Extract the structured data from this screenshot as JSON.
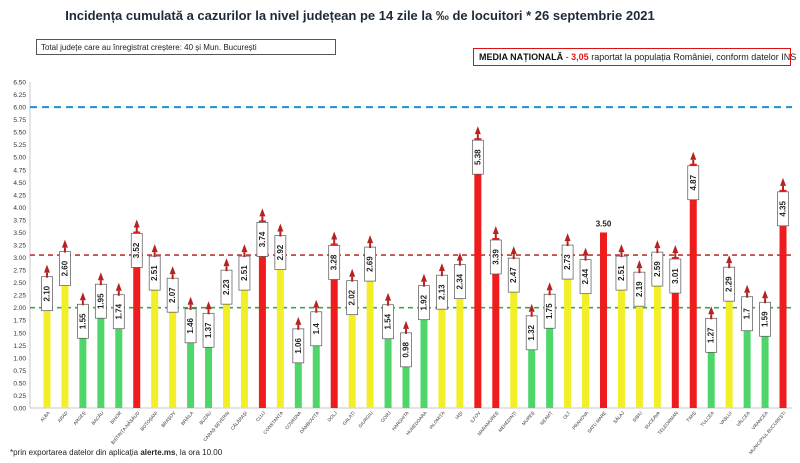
{
  "header": {
    "title": "Incidența cumulată a cazurilor la nivel județean pe 14 zile la ‰ de locuitori * 26 septembrie 2021"
  },
  "info_left": "Total județe care au înregistrat creștere:  40 și Mun. București",
  "info_right": {
    "label": "MEDIA NAȚIONALĂ",
    "sep": " - ",
    "value": "3,05",
    "rest": " raportat la populația României, conform datelor INS"
  },
  "footnote": {
    "prefix": "*prin exportarea datelor din aplicația ",
    "source": "alerte.ms",
    "suffix": ", la ora 10.00"
  },
  "colors": {
    "green": "#4fd66b",
    "yellow": "#f2ef28",
    "red": "#ee1c1c",
    "arrow": "#b52222",
    "line_blue": "#1f8fd3",
    "line_red": "#c0392b",
    "line_green": "#3aa84a"
  },
  "chart_data": {
    "type": "bar",
    "title": "Incidența cumulată a cazurilor la nivel județean pe 14 zile la ‰ de locuitori * 26 septembrie 2021",
    "ylim": [
      0,
      6.5
    ],
    "ytick_step": 0.25,
    "yticks": [
      "0.00",
      "0.25",
      "0.50",
      "0.75",
      "1.00",
      "1.25",
      "1.50",
      "1.75",
      "2.00",
      "2.25",
      "2.50",
      "2.75",
      "3.00",
      "3.25",
      "3.50",
      "3.75",
      "4.00",
      "4.25",
      "4.50",
      "4.75",
      "5.00",
      "5.25",
      "5.50",
      "5.75",
      "6.00",
      "6.25",
      "6.50"
    ],
    "reference_lines": [
      {
        "value": 6.0,
        "color": "blue",
        "style": "dashed"
      },
      {
        "value": 3.05,
        "color": "red",
        "style": "dashed"
      },
      {
        "value": 2.0,
        "color": "green",
        "style": "dashed"
      }
    ],
    "categories": [
      "ALBA",
      "ARAD",
      "ARGEȘ",
      "BACĂU",
      "BIHOR",
      "BISTRIȚA-NĂSĂUD",
      "BOTOȘANI",
      "BRAȘOV",
      "BRĂILA",
      "BUZĂU",
      "CARAȘ-SEVERIN",
      "CĂLĂRAȘI",
      "CLUJ",
      "CONSTANȚA",
      "COVASNA",
      "DÂMBOVIȚA",
      "DOLJ",
      "GALAȚI",
      "GIURGIU",
      "GORJ",
      "HARGHITA",
      "HUNEDOARA",
      "IALOMIȚA",
      "IAȘI",
      "ILFOV",
      "MARAMUREȘ",
      "MEHEDINȚI",
      "MUREȘ",
      "NEAMȚ",
      "OLT",
      "PRAHOVA",
      "SATU MARE",
      "SĂLAJ",
      "SIBIU",
      "SUCEAVA",
      "TELEORMAN",
      "TIMIȘ",
      "TULCEA",
      "VASLUI",
      "VÂLCEA",
      "VRANCEA",
      "MUNICIPIUL BUCUREȘTI"
    ],
    "values": [
      2.1,
      2.6,
      1.55,
      1.95,
      1.74,
      3.52,
      2.51,
      2.07,
      1.46,
      1.37,
      2.23,
      2.51,
      3.74,
      2.92,
      1.06,
      1.4,
      3.28,
      2.02,
      2.69,
      1.54,
      0.98,
      1.92,
      2.13,
      2.34,
      5.38,
      3.39,
      2.47,
      1.32,
      1.75,
      2.73,
      2.44,
      3.5,
      2.51,
      2.19,
      2.59,
      3.01,
      4.87,
      1.27,
      2.29,
      1.7,
      1.59,
      4.35
    ],
    "labels": [
      "2.10",
      "2.60",
      "1.55",
      "1.95",
      "1.74",
      "3.52",
      "2.51",
      "2.07",
      "1.46",
      "1.37",
      "2.23",
      "2.51",
      "3.74",
      "2.92",
      "1.06",
      "1.4",
      "3.28",
      "2.02",
      "2.69",
      "1.54",
      "0.98",
      "1.92",
      "2.13",
      "2.34",
      "5.38",
      "3.39",
      "2.47",
      "1.32",
      "1.75",
      "2.73",
      "2.44",
      "3.50",
      "2.51",
      "2.19",
      "2.59",
      "3.01",
      "4.87",
      "1.27",
      "2.29",
      "1.7",
      "1.59",
      "4.35"
    ],
    "colors": [
      "yellow",
      "yellow",
      "green",
      "green",
      "green",
      "red",
      "yellow",
      "yellow",
      "green",
      "green",
      "yellow",
      "yellow",
      "red",
      "yellow",
      "green",
      "green",
      "red",
      "yellow",
      "yellow",
      "green",
      "green",
      "green",
      "yellow",
      "yellow",
      "red",
      "red",
      "yellow",
      "green",
      "green",
      "yellow",
      "yellow",
      "red",
      "yellow",
      "yellow",
      "yellow",
      "red",
      "red",
      "green",
      "yellow",
      "green",
      "green",
      "red"
    ],
    "arrows": [
      true,
      true,
      true,
      true,
      true,
      true,
      true,
      true,
      true,
      true,
      true,
      true,
      true,
      true,
      true,
      true,
      true,
      true,
      true,
      true,
      true,
      true,
      true,
      true,
      true,
      true,
      true,
      true,
      true,
      true,
      true,
      false,
      true,
      true,
      true,
      true,
      true,
      true,
      true,
      true,
      true,
      true
    ]
  }
}
